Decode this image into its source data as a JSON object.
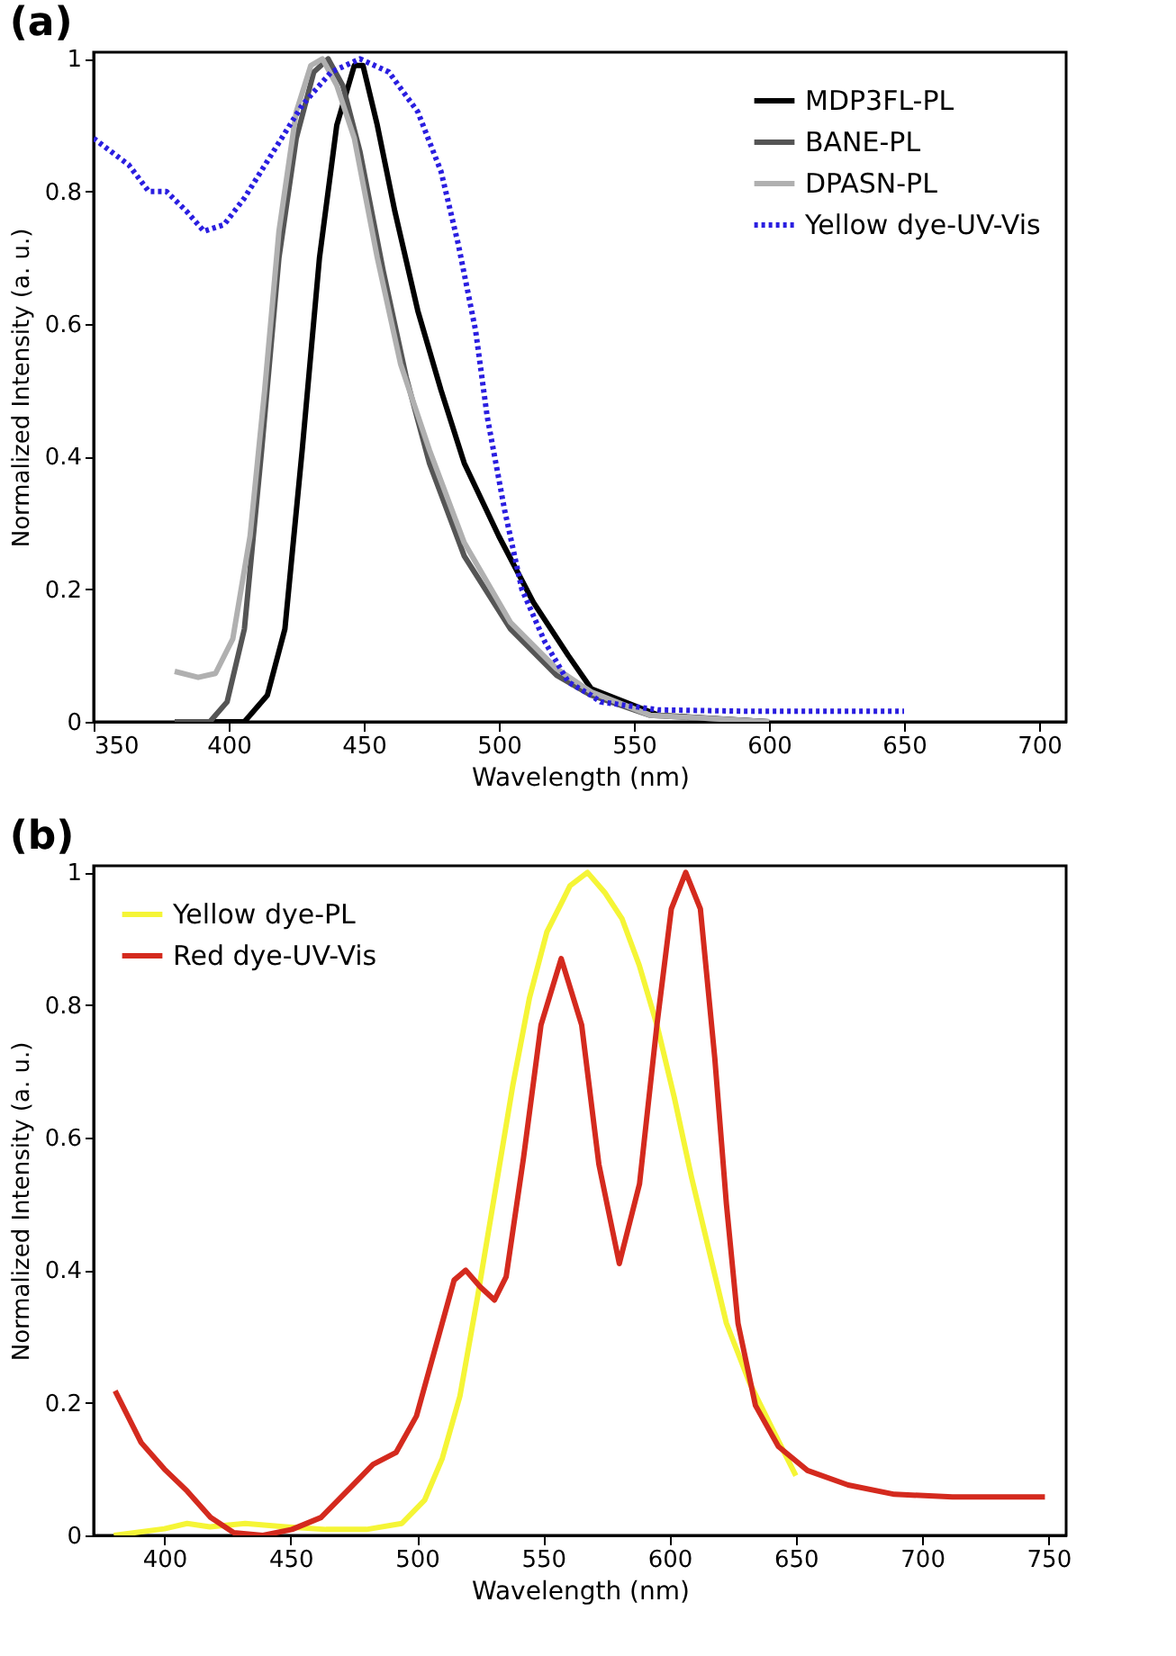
{
  "chart_data": [
    {
      "type": "line",
      "title": "(a)",
      "xlabel": "Wavelength (nm)",
      "ylabel": "Normalized Intensity (a. u.)",
      "xlim": [
        350,
        710
      ],
      "xticks": [
        350,
        400,
        450,
        500,
        550,
        600,
        650,
        700
      ],
      "ylim": [
        0,
        1.01
      ],
      "yticks": [
        0,
        0.2,
        0.4,
        0.6,
        0.8,
        1
      ],
      "grid": false,
      "legend": "top right",
      "marker": "none",
      "series": [
        {
          "name": "MDP3FL-PL",
          "color": "#000000",
          "line_style": "solid",
          "x": [
            380,
            405.8,
            414.3,
            420.8,
            427.2,
            433.6,
            440,
            446.5,
            449.7,
            455,
            461.5,
            470,
            478.6,
            487.2,
            500,
            512.8,
            525.7,
            534.2,
            559,
            600
          ],
          "values": [
            0,
            0,
            0.04,
            0.14,
            0.41,
            0.7,
            0.9,
            0.99,
            0.99,
            0.9,
            0.77,
            0.62,
            0.5,
            0.39,
            0.28,
            0.18,
            0.1,
            0.05,
            0.01,
            0
          ]
        },
        {
          "name": "BANE-PL",
          "color": "#555555",
          "line_style": "solid",
          "x": [
            380,
            393,
            399.4,
            405.8,
            412.2,
            418.6,
            425,
            431.5,
            436.8,
            442.2,
            448.6,
            457.2,
            465.7,
            474.3,
            487.2,
            504.3,
            521.4,
            534.2,
            555.8,
            600
          ],
          "values": [
            0,
            0,
            0.03,
            0.14,
            0.41,
            0.7,
            0.88,
            0.98,
            1,
            0.96,
            0.86,
            0.68,
            0.52,
            0.39,
            0.25,
            0.14,
            0.07,
            0.04,
            0.01,
            0
          ]
        },
        {
          "name": "DPASN-PL",
          "color": "#b0b0b0",
          "line_style": "solid",
          "x": [
            380,
            388.7,
            395.1,
            401.5,
            407.9,
            413.3,
            418.6,
            425,
            430.4,
            434.7,
            440,
            446.5,
            455,
            463.6,
            474.3,
            487.2,
            504.3,
            521.4,
            534.2,
            556,
            600
          ],
          "values": [
            0.076,
            0.067,
            0.073,
            0.125,
            0.28,
            0.5,
            0.74,
            0.92,
            0.99,
            1,
            0.96,
            0.88,
            0.7,
            0.54,
            0.41,
            0.27,
            0.15,
            0.08,
            0.045,
            0.01,
            0
          ]
        },
        {
          "name": "Yellow dye-UV-Vis",
          "color": "#2a1ee0",
          "line_style": "dotted",
          "x": [
            350,
            363,
            370.4,
            376.9,
            384.4,
            390.8,
            398.3,
            405.8,
            416.5,
            427.2,
            437.9,
            448.6,
            459.3,
            470,
            478.6,
            485,
            491.4,
            495.7,
            502.1,
            508.5,
            517.1,
            525.7,
            534.2,
            537.6,
            559,
            591,
            650
          ],
          "values": [
            0.88,
            0.84,
            0.8,
            0.8,
            0.77,
            0.74,
            0.75,
            0.79,
            0.86,
            0.93,
            0.98,
            1,
            0.98,
            0.92,
            0.83,
            0.72,
            0.59,
            0.46,
            0.32,
            0.2,
            0.12,
            0.06,
            0.04,
            0.03,
            0.018,
            0.016,
            0.016
          ]
        }
      ]
    },
    {
      "type": "line",
      "title": "(b)",
      "xlabel": "Wavelength (nm)",
      "ylabel": "Normalized Intensity (a. u.)",
      "xlim": [
        372,
        757
      ],
      "xticks": [
        400,
        450,
        500,
        550,
        600,
        650,
        700,
        750
      ],
      "ylim": [
        0,
        1.01
      ],
      "yticks": [
        0,
        0.2,
        0.4,
        0.6,
        0.8,
        1
      ],
      "grid": false,
      "legend": "top left",
      "marker": "none",
      "series": [
        {
          "name": "Yellow dye-PL",
          "color": "#f5f536",
          "line_style": "solid",
          "x": [
            380,
            400,
            409,
            418,
            432,
            448,
            464,
            480,
            494,
            503,
            510,
            517,
            524,
            531,
            538,
            544.5,
            551.4,
            558,
            560.6,
            567.5,
            574.3,
            581.2,
            588,
            595,
            601.9,
            608.7,
            615.6,
            622.5,
            631.7,
            640.8,
            650
          ],
          "values": [
            0,
            0.01,
            0.018,
            0.013,
            0.018,
            0.013,
            0.009,
            0.009,
            0.018,
            0.053,
            0.116,
            0.21,
            0.36,
            0.52,
            0.68,
            0.81,
            0.91,
            0.96,
            0.98,
            1,
            0.97,
            0.93,
            0.86,
            0.77,
            0.66,
            0.54,
            0.43,
            0.32,
            0.23,
            0.16,
            0.09
          ]
        },
        {
          "name": "Red dye-UV-Vis",
          "color": "#d42a1e",
          "line_style": "solid",
          "x": [
            380.5,
            390.8,
            400,
            409,
            418.3,
            427.5,
            439,
            450.5,
            462,
            473.4,
            482.6,
            491.7,
            499.8,
            507.8,
            514.7,
            519.3,
            525,
            530.7,
            535.3,
            542.2,
            549.1,
            557.1,
            565.2,
            572,
            580.1,
            588.1,
            595,
            600.7,
            606.4,
            612.2,
            617.9,
            622.5,
            627.1,
            634,
            643.1,
            654.6,
            670.7,
            689,
            712,
            748.6
          ],
          "values": [
            0.218,
            0.14,
            0.1,
            0.067,
            0.027,
            0.004,
            0,
            0.009,
            0.027,
            0.071,
            0.107,
            0.125,
            0.18,
            0.29,
            0.385,
            0.4,
            0.375,
            0.355,
            0.39,
            0.57,
            0.77,
            0.87,
            0.77,
            0.56,
            0.41,
            0.53,
            0.77,
            0.945,
            1,
            0.945,
            0.72,
            0.5,
            0.32,
            0.196,
            0.134,
            0.098,
            0.076,
            0.062,
            0.058,
            0.058
          ]
        }
      ]
    }
  ]
}
